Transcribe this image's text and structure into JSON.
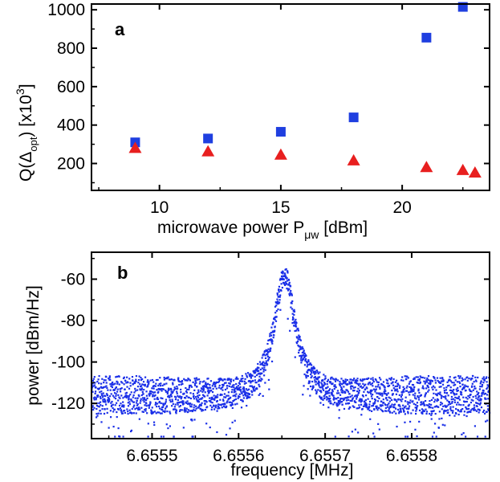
{
  "chart_data": [
    {
      "type": "scatter",
      "panel_label": "a",
      "xlabel": {
        "main": "microwave power P",
        "sub": "μw",
        "tail": " [dBm]"
      },
      "ylabel": {
        "q": "Q(Δ",
        "sub": "opt",
        "mid": ") [x10",
        "sup": "3",
        "end": "]"
      },
      "xlim": [
        7.2,
        23.6
      ],
      "ylim": [
        60,
        1030
      ],
      "xticks": [
        10,
        15,
        20
      ],
      "yticks": [
        200,
        400,
        600,
        800,
        1000
      ],
      "series": [
        {
          "marker": "square",
          "color": "#1f3fe0",
          "points": [
            [
              9,
              310
            ],
            [
              12,
              330
            ],
            [
              15,
              365
            ],
            [
              18,
              440
            ],
            [
              21,
              855
            ],
            [
              22.5,
              1015
            ]
          ]
        },
        {
          "marker": "triangle",
          "color": "#e81f1f",
          "points": [
            [
              9,
              280
            ],
            [
              12,
              262
            ],
            [
              15,
              245
            ],
            [
              18,
              215
            ],
            [
              21,
              180
            ],
            [
              22.5,
              165
            ],
            [
              23,
              152
            ]
          ]
        }
      ]
    },
    {
      "type": "scatter",
      "panel_label": "b",
      "xlabel": "frequency [MHz]",
      "ylabel": "power [dBm/Hz]",
      "xlim": [
        6.65543,
        6.65589
      ],
      "ylim": [
        -137,
        -47
      ],
      "xticks": [
        "6.6555",
        "6.6556",
        "6.6557",
        "6.6558"
      ],
      "xtick_values": [
        6.6555,
        6.6556,
        6.6557,
        6.6558
      ],
      "yticks": [
        -60,
        -80,
        -100,
        -120
      ],
      "peak_center": 6.655653,
      "peak_value": -52,
      "noise_floor": -115,
      "color": "#1a2fe8"
    }
  ]
}
